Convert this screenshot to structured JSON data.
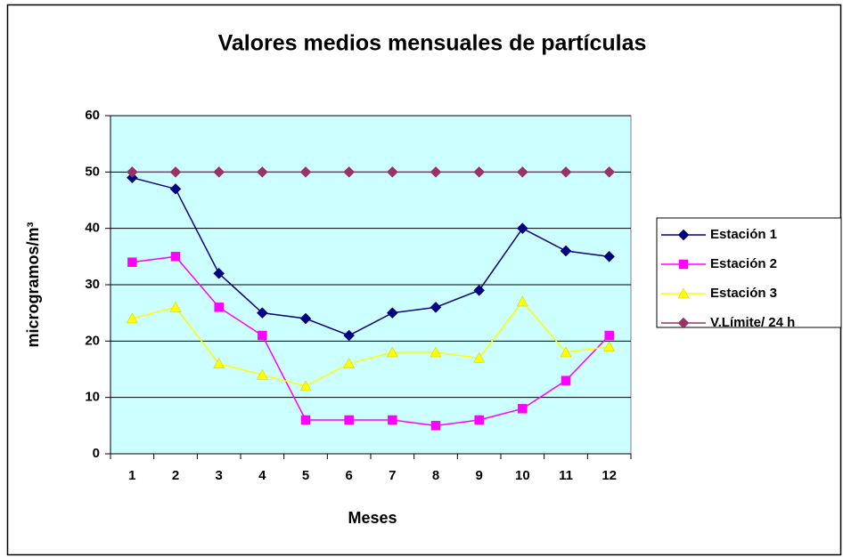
{
  "chart_data": {
    "type": "line",
    "title": "Valores medios mensuales de partículas",
    "xlabel": "Meses",
    "ylabel": "microgramos/m³",
    "categories": [
      1,
      2,
      3,
      4,
      5,
      6,
      7,
      8,
      9,
      10,
      11,
      12
    ],
    "series": [
      {
        "name": "Estación 1",
        "color": "#000080",
        "marker": "diamond",
        "values": [
          49,
          47,
          32,
          25,
          24,
          21,
          25,
          26,
          29,
          40,
          36,
          35
        ]
      },
      {
        "name": "Estación 2",
        "color": "#ff00ff",
        "marker": "square",
        "values": [
          34,
          35,
          26,
          21,
          6,
          6,
          6,
          5,
          6,
          8,
          13,
          21
        ]
      },
      {
        "name": "Estación 3",
        "color": "#ffff00",
        "marker": "triangle",
        "values": [
          24,
          26,
          16,
          14,
          12,
          16,
          18,
          18,
          17,
          27,
          18,
          19
        ]
      },
      {
        "name": "V.Límite/ 24 h",
        "color": "#993366",
        "marker": "diamond",
        "values": [
          50,
          50,
          50,
          50,
          50,
          50,
          50,
          50,
          50,
          50,
          50,
          50
        ]
      }
    ],
    "ylim": [
      0,
      60
    ],
    "yticks": [
      0,
      10,
      20,
      30,
      40,
      50,
      60
    ],
    "grid": true,
    "plot_background": "#ccffff",
    "legend": "right"
  }
}
